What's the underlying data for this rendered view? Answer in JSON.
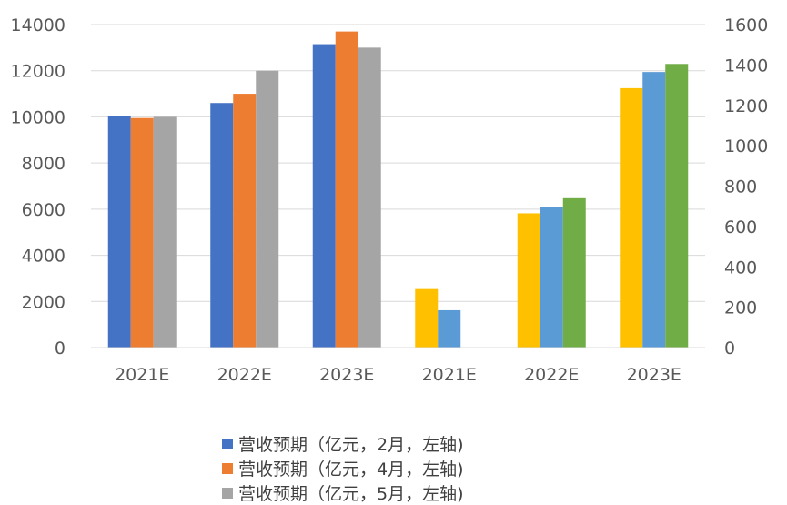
{
  "chart_data": {
    "type": "bar",
    "categories": [
      "2021E",
      "2022E",
      "2023E",
      "2021E",
      "2022E",
      "2023E"
    ],
    "left_axis": {
      "ylim": [
        0,
        14000
      ],
      "ticks": [
        "0",
        "2000",
        "4000",
        "6000",
        "8000",
        "10000",
        "12000",
        "14000"
      ]
    },
    "right_axis": {
      "ylim": [
        0,
        1600
      ],
      "ticks": [
        "0",
        "200",
        "400",
        "600",
        "800",
        "1000",
        "1200",
        "1400",
        "1600"
      ]
    },
    "grid": true,
    "legend_position": "bottom",
    "series": [
      {
        "name": "营收预期（亿元，2月，左轴)",
        "axis": "left",
        "color": "#4472C4",
        "values": [
          10050,
          10600,
          13150,
          null,
          null,
          null
        ]
      },
      {
        "name": "营收预期（亿元，4月，左轴)",
        "axis": "left",
        "color": "#ED7D31",
        "values": [
          9950,
          11000,
          13700,
          null,
          null,
          null
        ]
      },
      {
        "name": "营收预期（亿元，5月，左轴)",
        "axis": "left",
        "color": "#A5A5A5",
        "values": [
          10000,
          12000,
          13000,
          null,
          null,
          null
        ]
      },
      {
        "axis": "right",
        "color": "#FFC000",
        "values": [
          null,
          null,
          null,
          290,
          665,
          1285
        ]
      },
      {
        "axis": "right",
        "color": "#5B9BD5",
        "values": [
          null,
          null,
          null,
          185,
          695,
          1365
        ]
      },
      {
        "axis": "right",
        "color": "#70AD47",
        "values": [
          null,
          null,
          null,
          null,
          740,
          1405
        ]
      }
    ]
  }
}
